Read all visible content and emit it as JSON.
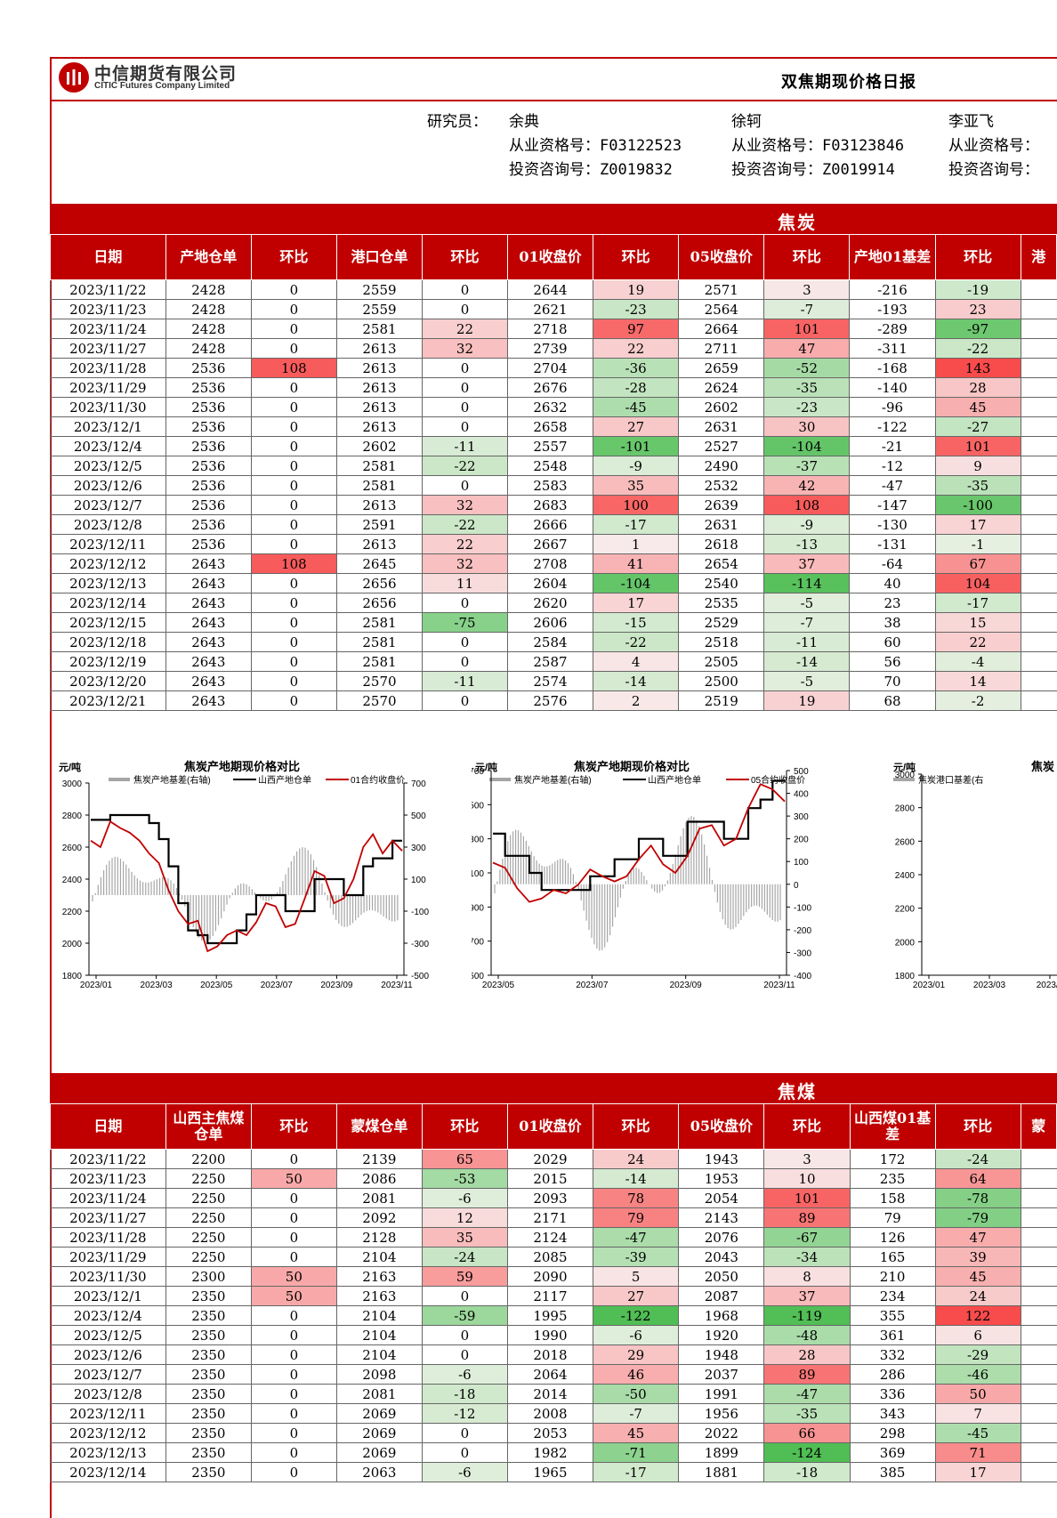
{
  "header": {
    "company_cn": "中信期货有限公司",
    "company_en": "CITIC Futures Company Limited",
    "report_title": "双焦期现价格日报"
  },
  "researchers": {
    "label": "研究员：",
    "people": [
      {
        "name": "余典",
        "qual_label": "从业资格号：",
        "qual": "F03122523",
        "cons_label": "投资咨询号：",
        "cons": "Z0019832"
      },
      {
        "name": "徐轲",
        "qual_label": "从业资格号：",
        "qual": "F03123846",
        "cons_label": "投资咨询号：",
        "cons": "Z0019914"
      },
      {
        "name": "李亚飞",
        "qual_label": "从业资格号：",
        "qual": "",
        "cons_label": "投资咨询号：",
        "cons": ""
      }
    ]
  },
  "coke": {
    "title": "焦炭",
    "headers": [
      "日期",
      "产地仓单",
      "环比",
      "港口仓单",
      "环比",
      "01收盘价",
      "环比",
      "05收盘价",
      "环比",
      "产地01基差",
      "环比",
      "港"
    ],
    "rows": [
      [
        "2023/11/22",
        "2428",
        "0",
        "2559",
        "0",
        "2644",
        "19",
        "2571",
        "3",
        "-216",
        "-19"
      ],
      [
        "2023/11/23",
        "2428",
        "0",
        "2559",
        "0",
        "2621",
        "-23",
        "2564",
        "-7",
        "-193",
        "23"
      ],
      [
        "2023/11/24",
        "2428",
        "0",
        "2581",
        "22",
        "2718",
        "97",
        "2664",
        "101",
        "-289",
        "-97"
      ],
      [
        "2023/11/27",
        "2428",
        "0",
        "2613",
        "32",
        "2739",
        "22",
        "2711",
        "47",
        "-311",
        "-22"
      ],
      [
        "2023/11/28",
        "2536",
        "108",
        "2613",
        "0",
        "2704",
        "-36",
        "2659",
        "-52",
        "-168",
        "143"
      ],
      [
        "2023/11/29",
        "2536",
        "0",
        "2613",
        "0",
        "2676",
        "-28",
        "2624",
        "-35",
        "-140",
        "28"
      ],
      [
        "2023/11/30",
        "2536",
        "0",
        "2613",
        "0",
        "2632",
        "-45",
        "2602",
        "-23",
        "-96",
        "45"
      ],
      [
        "2023/12/1",
        "2536",
        "0",
        "2613",
        "0",
        "2658",
        "27",
        "2631",
        "30",
        "-122",
        "-27"
      ],
      [
        "2023/12/4",
        "2536",
        "0",
        "2602",
        "-11",
        "2557",
        "-101",
        "2527",
        "-104",
        "-21",
        "101"
      ],
      [
        "2023/12/5",
        "2536",
        "0",
        "2581",
        "-22",
        "2548",
        "-9",
        "2490",
        "-37",
        "-12",
        "9"
      ],
      [
        "2023/12/6",
        "2536",
        "0",
        "2581",
        "0",
        "2583",
        "35",
        "2532",
        "42",
        "-47",
        "-35"
      ],
      [
        "2023/12/7",
        "2536",
        "0",
        "2613",
        "32",
        "2683",
        "100",
        "2639",
        "108",
        "-147",
        "-100"
      ],
      [
        "2023/12/8",
        "2536",
        "0",
        "2591",
        "-22",
        "2666",
        "-17",
        "2631",
        "-9",
        "-130",
        "17"
      ],
      [
        "2023/12/11",
        "2536",
        "0",
        "2613",
        "22",
        "2667",
        "1",
        "2618",
        "-13",
        "-131",
        "-1"
      ],
      [
        "2023/12/12",
        "2643",
        "108",
        "2645",
        "32",
        "2708",
        "41",
        "2654",
        "37",
        "-64",
        "67"
      ],
      [
        "2023/12/13",
        "2643",
        "0",
        "2656",
        "11",
        "2604",
        "-104",
        "2540",
        "-114",
        "40",
        "104"
      ],
      [
        "2023/12/14",
        "2643",
        "0",
        "2656",
        "0",
        "2620",
        "17",
        "2535",
        "-5",
        "23",
        "-17"
      ],
      [
        "2023/12/15",
        "2643",
        "0",
        "2581",
        "-75",
        "2606",
        "-15",
        "2529",
        "-7",
        "38",
        "15"
      ],
      [
        "2023/12/18",
        "2643",
        "0",
        "2581",
        "0",
        "2584",
        "-22",
        "2518",
        "-11",
        "60",
        "22"
      ],
      [
        "2023/12/19",
        "2643",
        "0",
        "2581",
        "0",
        "2587",
        "4",
        "2505",
        "-14",
        "56",
        "-4"
      ],
      [
        "2023/12/20",
        "2643",
        "0",
        "2570",
        "-11",
        "2574",
        "-14",
        "2500",
        "-5",
        "70",
        "14"
      ],
      [
        "2023/12/21",
        "2643",
        "0",
        "2570",
        "0",
        "2576",
        "2",
        "2519",
        "19",
        "68",
        "-2"
      ]
    ]
  },
  "coal": {
    "title": "焦煤",
    "headers": [
      "日期",
      "山西主焦煤仓单",
      "环比",
      "蒙煤仓单",
      "环比",
      "01收盘价",
      "环比",
      "05收盘价",
      "环比",
      "山西煤01基差",
      "环比",
      "蒙"
    ],
    "rows": [
      [
        "2023/11/22",
        "2200",
        "0",
        "2139",
        "65",
        "2029",
        "24",
        "1943",
        "3",
        "172",
        "-24"
      ],
      [
        "2023/11/23",
        "2250",
        "50",
        "2086",
        "-53",
        "2015",
        "-14",
        "1953",
        "10",
        "235",
        "64"
      ],
      [
        "2023/11/24",
        "2250",
        "0",
        "2081",
        "-6",
        "2093",
        "78",
        "2054",
        "101",
        "158",
        "-78"
      ],
      [
        "2023/11/27",
        "2250",
        "0",
        "2092",
        "12",
        "2171",
        "79",
        "2143",
        "89",
        "79",
        "-79"
      ],
      [
        "2023/11/28",
        "2250",
        "0",
        "2128",
        "35",
        "2124",
        "-47",
        "2076",
        "-67",
        "126",
        "47"
      ],
      [
        "2023/11/29",
        "2250",
        "0",
        "2104",
        "-24",
        "2085",
        "-39",
        "2043",
        "-34",
        "165",
        "39"
      ],
      [
        "2023/11/30",
        "2300",
        "50",
        "2163",
        "59",
        "2090",
        "5",
        "2050",
        "8",
        "210",
        "45"
      ],
      [
        "2023/12/1",
        "2350",
        "50",
        "2163",
        "0",
        "2117",
        "27",
        "2087",
        "37",
        "234",
        "24"
      ],
      [
        "2023/12/4",
        "2350",
        "0",
        "2104",
        "-59",
        "1995",
        "-122",
        "1968",
        "-119",
        "355",
        "122"
      ],
      [
        "2023/12/5",
        "2350",
        "0",
        "2104",
        "0",
        "1990",
        "-6",
        "1920",
        "-48",
        "361",
        "6"
      ],
      [
        "2023/12/6",
        "2350",
        "0",
        "2104",
        "0",
        "2018",
        "29",
        "1948",
        "28",
        "332",
        "-29"
      ],
      [
        "2023/12/7",
        "2350",
        "0",
        "2098",
        "-6",
        "2064",
        "46",
        "2037",
        "89",
        "286",
        "-46"
      ],
      [
        "2023/12/8",
        "2350",
        "0",
        "2081",
        "-18",
        "2014",
        "-50",
        "1991",
        "-47",
        "336",
        "50"
      ],
      [
        "2023/12/11",
        "2350",
        "0",
        "2069",
        "-12",
        "2008",
        "-7",
        "1956",
        "-35",
        "343",
        "7"
      ],
      [
        "2023/12/12",
        "2350",
        "0",
        "2069",
        "0",
        "2053",
        "45",
        "2022",
        "66",
        "298",
        "-45"
      ],
      [
        "2023/12/13",
        "2350",
        "0",
        "2069",
        "0",
        "1982",
        "-71",
        "1899",
        "-124",
        "369",
        "71"
      ],
      [
        "2023/12/14",
        "2350",
        "0",
        "2063",
        "-6",
        "1965",
        "-17",
        "1881",
        "-18",
        "385",
        "17"
      ]
    ]
  },
  "colors": {
    "brand_red": "#c00000",
    "price_line": "#c00000",
    "warehouse_line": "#000000",
    "basis_bar": "#a6a6a6"
  },
  "chart_data": [
    {
      "type": "line",
      "title": "焦炭产地期现价格对比",
      "unit": "元/吨",
      "legend": [
        "焦炭产地基差(右轴)",
        "山西产地仓单",
        "01合约收盘价"
      ],
      "x_ticks": [
        "2023/01",
        "2023/03",
        "2023/05",
        "2023/07",
        "2023/09",
        "2023/11"
      ],
      "y_left": [
        1800,
        3000
      ],
      "y_left_ticks": [
        1800,
        2000,
        2200,
        2400,
        2600,
        2800,
        3000
      ],
      "y_right": [
        -500,
        700
      ],
      "y_right_ticks": [
        -500,
        -300,
        -100,
        100,
        300,
        500,
        700
      ],
      "series": [
        {
          "name": "山西产地仓单",
          "axis": "left",
          "values": [
            2770,
            2770,
            2800,
            2800,
            2800,
            2800,
            2750,
            2650,
            2480,
            2250,
            2080,
            2050,
            2000,
            2000,
            2000,
            2080,
            2180,
            2300,
            2300,
            2300,
            2200,
            2200,
            2200,
            2400,
            2400,
            2400,
            2300,
            2300,
            2480,
            2530,
            2530,
            2640,
            2640
          ]
        },
        {
          "name": "01合约收盘价",
          "axis": "left",
          "values": [
            2640,
            2600,
            2760,
            2720,
            2690,
            2640,
            2560,
            2500,
            2330,
            2200,
            2120,
            2140,
            1950,
            1980,
            2050,
            2080,
            2050,
            2130,
            2250,
            2230,
            2100,
            2120,
            2280,
            2450,
            2420,
            2250,
            2280,
            2400,
            2600,
            2680,
            2560,
            2640,
            2576
          ]
        },
        {
          "name": "焦炭产地基差(右轴)",
          "axis": "right",
          "type": "bar"
        }
      ]
    },
    {
      "type": "line",
      "title": "焦炭产地期现价格对比",
      "unit": "元/吨",
      "legend": [
        "焦炭产地基差(右轴)",
        "山西产地仓单",
        "05合约收盘价"
      ],
      "x_ticks": [
        "2023/05",
        "2023/07",
        "2023/09",
        "2023/11"
      ],
      "y_left": [
        1500,
        2700
      ],
      "y_left_ticks": [
        1500,
        1700,
        1900,
        2100,
        2300,
        2500,
        2700
      ],
      "y_right": [
        -400,
        500
      ],
      "y_right_ticks": [
        -400,
        -300,
        -200,
        -100,
        0,
        100,
        200,
        300,
        400,
        500
      ],
      "series": [
        {
          "name": "山西产地仓单",
          "axis": "left",
          "values": [
            2330,
            2200,
            2200,
            2100,
            2000,
            2000,
            2000,
            2000,
            2080,
            2080,
            2180,
            2180,
            2300,
            2300,
            2200,
            2200,
            2400,
            2400,
            2400,
            2300,
            2300,
            2480,
            2530,
            2640,
            2640
          ]
        },
        {
          "name": "05合约收盘价",
          "axis": "left",
          "values": [
            2160,
            2130,
            2010,
            1930,
            1950,
            2000,
            1980,
            2030,
            2120,
            2080,
            2050,
            2080,
            2180,
            2260,
            2150,
            2100,
            2200,
            2360,
            2380,
            2260,
            2300,
            2480,
            2620,
            2590,
            2519
          ]
        },
        {
          "name": "焦炭产地基差(右轴)",
          "axis": "right",
          "type": "bar"
        }
      ]
    },
    {
      "type": "line",
      "title": "焦炭",
      "unit": "元/吨",
      "legend": [
        "焦炭港口基差(右"
      ],
      "x_ticks": [
        "2023/01",
        "2023/03",
        "2023/0"
      ],
      "y_left": [
        1800,
        3000
      ],
      "y_left_ticks": [
        1800,
        2000,
        2200,
        2400,
        2600,
        2800,
        3000
      ],
      "series": []
    }
  ]
}
